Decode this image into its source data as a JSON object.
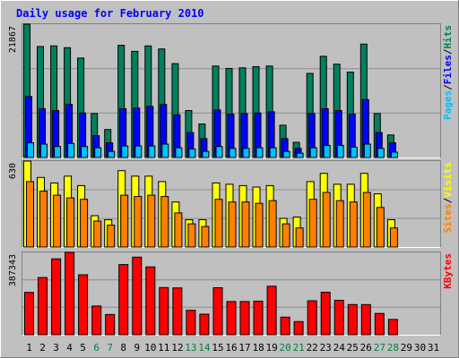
{
  "title": "Daily usage for February 2010",
  "colors": {
    "background": "#c0c0c0",
    "border_light": "#ffffff",
    "border_dark": "#808080",
    "title": "#0000ff",
    "grid": "#8c8c8c",
    "hits": "#00805c",
    "files": "#0000ff",
    "pages": "#00c0ff",
    "visits": "#ffff00",
    "sites": "#ff8000",
    "kbytes": "#ff0000",
    "weekday_label": "#000000",
    "weekend_label": "#008040"
  },
  "chart_data": [
    {
      "type": "bar",
      "panel": "hits-files-pages",
      "axis_max_label": "21867",
      "ylim": [
        0,
        21867
      ],
      "legend": [
        {
          "name": "Hits",
          "color": "#00805c"
        },
        {
          "name": "Files",
          "color": "#0000ff"
        },
        {
          "name": "Pages",
          "color": "#00c0ff"
        }
      ],
      "legend_separator": "/",
      "categories": [
        "1",
        "2",
        "3",
        "4",
        "5",
        "6",
        "7",
        "8",
        "9",
        "10",
        "11",
        "12",
        "13",
        "14",
        "15",
        "16",
        "17",
        "18",
        "19",
        "20",
        "21",
        "22",
        "23",
        "24",
        "25",
        "26",
        "27",
        "28",
        "29",
        "30",
        "31"
      ],
      "series": [
        {
          "name": "Hits",
          "values": [
            21867,
            18200,
            18300,
            18000,
            16300,
            7200,
            4600,
            18400,
            17400,
            18300,
            17800,
            15400,
            7700,
            5500,
            15000,
            14600,
            14700,
            14900,
            15000,
            5300,
            2500,
            13800,
            16600,
            15300,
            14000,
            18600,
            7200,
            3700,
            null,
            null,
            null
          ]
        },
        {
          "name": "Files",
          "values": [
            10000,
            8000,
            7700,
            8700,
            7300,
            3600,
            2400,
            8000,
            8100,
            8400,
            8700,
            7000,
            4100,
            3100,
            7800,
            7100,
            7200,
            7300,
            7500,
            3100,
            1500,
            7200,
            8000,
            7700,
            7100,
            9500,
            4100,
            2400,
            null,
            null,
            null
          ]
        },
        {
          "name": "Pages",
          "values": [
            2400,
            2200,
            1800,
            2300,
            1800,
            1600,
            1000,
            1900,
            1900,
            1900,
            2200,
            1600,
            1400,
            1000,
            1800,
            1500,
            1500,
            1600,
            1600,
            1000,
            700,
            1600,
            2000,
            2000,
            1700,
            2200,
            1500,
            900,
            null,
            null,
            null
          ]
        }
      ]
    },
    {
      "type": "bar",
      "panel": "visits-sites",
      "axis_max_label": "630",
      "ylim": [
        0,
        630
      ],
      "legend": [
        {
          "name": "Visits",
          "color": "#ffff00"
        },
        {
          "name": "Sites",
          "color": "#ff8000"
        }
      ],
      "legend_separator": "/",
      "categories": [
        "1",
        "2",
        "3",
        "4",
        "5",
        "6",
        "7",
        "8",
        "9",
        "10",
        "11",
        "12",
        "13",
        "14",
        "15",
        "16",
        "17",
        "18",
        "19",
        "20",
        "21",
        "22",
        "23",
        "24",
        "25",
        "26",
        "27",
        "28",
        "29",
        "30",
        "31"
      ],
      "series": [
        {
          "name": "Visits",
          "values": [
            630,
            510,
            470,
            520,
            450,
            230,
            200,
            560,
            520,
            520,
            480,
            330,
            200,
            200,
            470,
            460,
            450,
            440,
            450,
            210,
            220,
            480,
            540,
            460,
            460,
            540,
            390,
            200,
            null,
            null,
            null
          ]
        },
        {
          "name": "Sites",
          "values": [
            480,
            410,
            380,
            360,
            350,
            190,
            160,
            380,
            370,
            380,
            370,
            250,
            170,
            150,
            350,
            330,
            330,
            320,
            340,
            170,
            140,
            350,
            400,
            340,
            330,
            400,
            290,
            140,
            null,
            null,
            null
          ]
        }
      ]
    },
    {
      "type": "bar",
      "panel": "kbytes",
      "axis_max_label": "387343",
      "ylim": [
        0,
        387343
      ],
      "legend": [
        {
          "name": "KBytes",
          "color": "#ff0000"
        }
      ],
      "legend_separator": "",
      "categories": [
        "1",
        "2",
        "3",
        "4",
        "5",
        "6",
        "7",
        "8",
        "9",
        "10",
        "11",
        "12",
        "13",
        "14",
        "15",
        "16",
        "17",
        "18",
        "19",
        "20",
        "21",
        "22",
        "23",
        "24",
        "25",
        "26",
        "27",
        "28",
        "29",
        "30",
        "31"
      ],
      "series": [
        {
          "name": "KBytes",
          "values": [
            199000,
            269000,
            357000,
            387343,
            282000,
            135000,
            95000,
            330000,
            365000,
            319000,
            222000,
            220000,
            115000,
            97000,
            221000,
            156000,
            156000,
            158000,
            228000,
            83000,
            62000,
            160000,
            200000,
            162000,
            142000,
            142000,
            100000,
            72000,
            null,
            null,
            null
          ]
        }
      ]
    }
  ],
  "x_axis": {
    "labels": [
      "1",
      "2",
      "3",
      "4",
      "5",
      "6",
      "7",
      "8",
      "9",
      "10",
      "11",
      "12",
      "13",
      "14",
      "15",
      "16",
      "17",
      "18",
      "19",
      "20",
      "21",
      "22",
      "23",
      "24",
      "25",
      "26",
      "27",
      "28",
      "29",
      "30",
      "31"
    ],
    "weekend": [
      "6",
      "7",
      "13",
      "14",
      "20",
      "21",
      "27",
      "28"
    ]
  }
}
